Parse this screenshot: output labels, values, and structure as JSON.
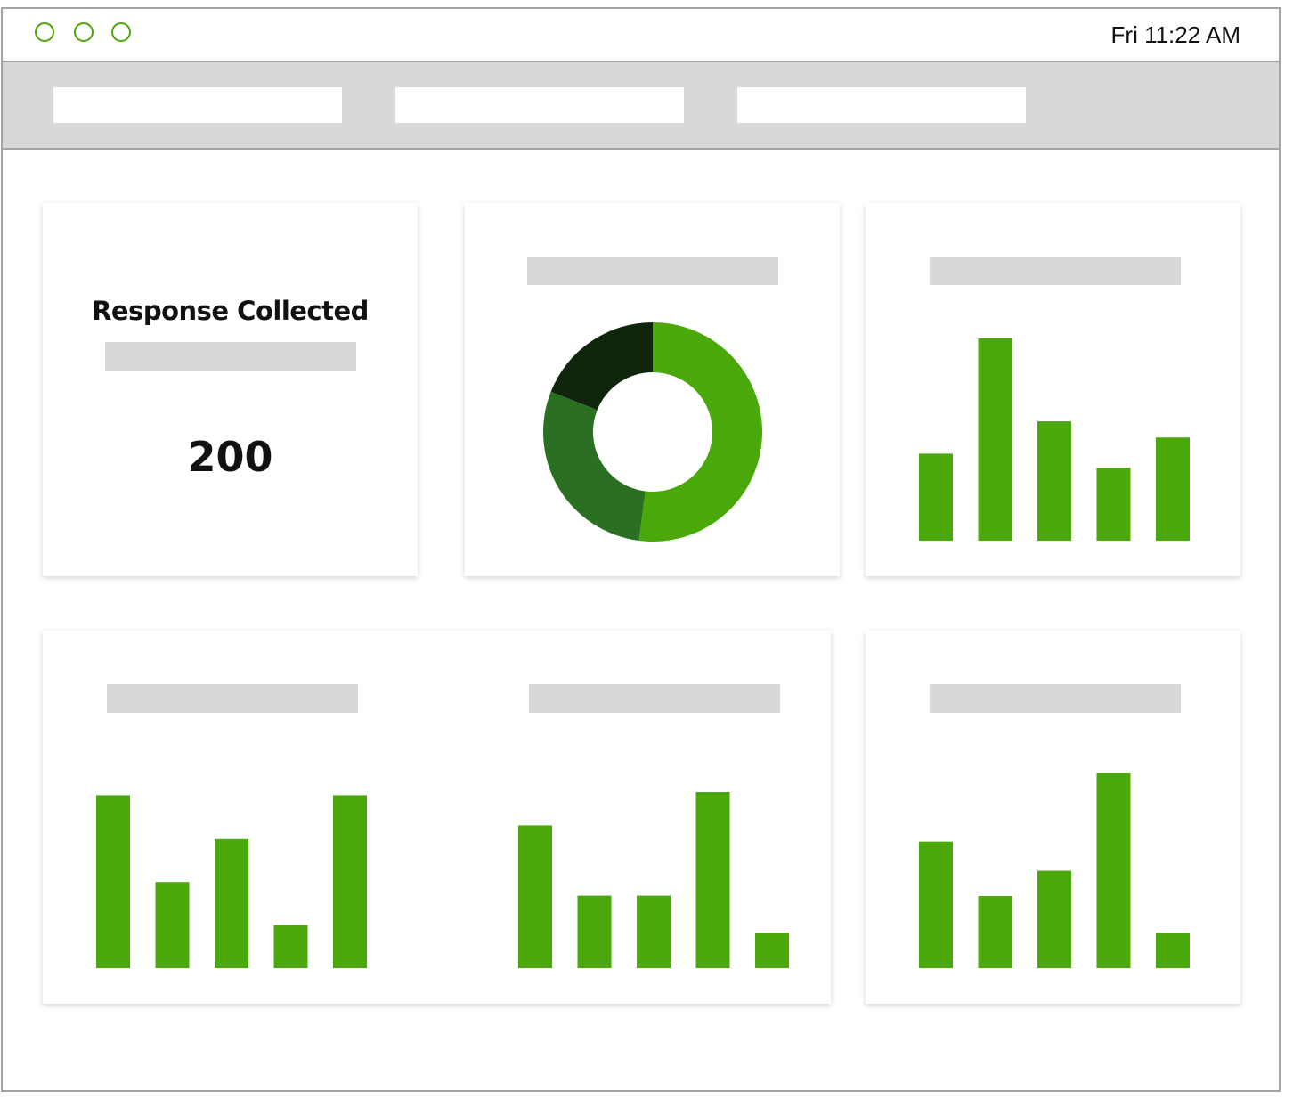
{
  "window": {
    "clock": "Fri 11:22 AM",
    "accent_color": "#4aa80a",
    "traffic_lights": [
      "close-button",
      "minimize-button",
      "maximize-button"
    ]
  },
  "nav": {
    "tabs": [
      "",
      "",
      ""
    ]
  },
  "metric_card": {
    "title": "Response Collected",
    "value": "200"
  },
  "colors": {
    "bar": "#4aa80a",
    "donut": [
      "#4aa80a",
      "#2a6f22",
      "#10260c"
    ],
    "placeholder": "#d8d8d8"
  },
  "chart_data": [
    {
      "id": "donut",
      "type": "pie",
      "values": [
        52,
        29,
        19
      ]
    },
    {
      "id": "bar-top-right",
      "type": "bar",
      "categories": [
        "",
        "",
        "",
        "",
        ""
      ],
      "values": [
        43,
        100,
        59,
        36,
        51
      ],
      "ylim": [
        0,
        100
      ]
    },
    {
      "id": "bar-bottom-left",
      "type": "bar",
      "categories": [
        "",
        "",
        "",
        "",
        ""
      ],
      "values": [
        88,
        44,
        66,
        22,
        88
      ],
      "ylim": [
        0,
        100
      ]
    },
    {
      "id": "bar-bottom-middle",
      "type": "bar",
      "categories": [
        "",
        "",
        "",
        "",
        ""
      ],
      "values": [
        73,
        37,
        37,
        90,
        18
      ],
      "ylim": [
        0,
        100
      ]
    },
    {
      "id": "bar-bottom-right",
      "type": "bar",
      "categories": [
        "",
        "",
        "",
        "",
        ""
      ],
      "values": [
        65,
        37,
        50,
        100,
        18
      ],
      "ylim": [
        0,
        100
      ]
    }
  ]
}
